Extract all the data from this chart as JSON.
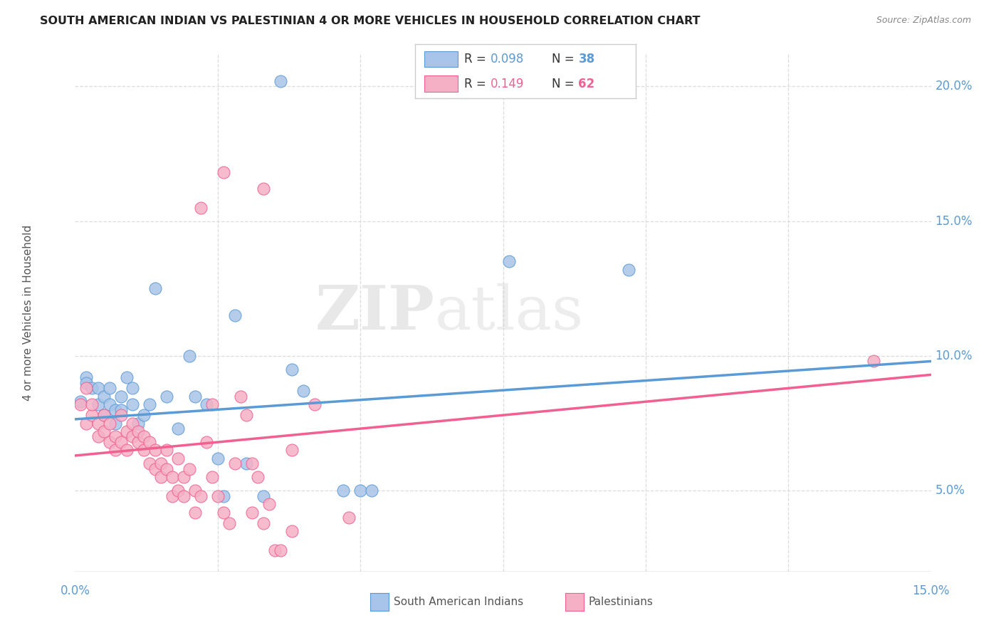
{
  "title": "SOUTH AMERICAN INDIAN VS PALESTINIAN 4 OR MORE VEHICLES IN HOUSEHOLD CORRELATION CHART",
  "source": "Source: ZipAtlas.com",
  "ylabel": "4 or more Vehicles in Household",
  "ytick_labels": [
    "5.0%",
    "10.0%",
    "15.0%",
    "20.0%"
  ],
  "ytick_values": [
    0.05,
    0.1,
    0.15,
    0.2
  ],
  "xmin": 0.0,
  "xmax": 0.15,
  "ymin": 0.02,
  "ymax": 0.212,
  "watermark_zip": "ZIP",
  "watermark_atlas": "atlas",
  "legend_blue_r": "R = ",
  "legend_blue_r_val": "0.098",
  "legend_blue_n_label": "N = ",
  "legend_blue_n_val": "38",
  "legend_pink_r": "R = ",
  "legend_pink_r_val": "0.149",
  "legend_pink_n_label": "N = ",
  "legend_pink_n_val": "62",
  "blue_color": "#a8c4e8",
  "pink_color": "#f5b0c5",
  "line_blue": "#5b9bd5",
  "line_pink": "#f06090",
  "grid_color": "#dddddd",
  "blue_scatter": [
    [
      0.001,
      0.083
    ],
    [
      0.002,
      0.092
    ],
    [
      0.002,
      0.09
    ],
    [
      0.003,
      0.088
    ],
    [
      0.004,
      0.082
    ],
    [
      0.004,
      0.088
    ],
    [
      0.005,
      0.085
    ],
    [
      0.005,
      0.078
    ],
    [
      0.006,
      0.082
    ],
    [
      0.006,
      0.088
    ],
    [
      0.007,
      0.08
    ],
    [
      0.007,
      0.075
    ],
    [
      0.008,
      0.085
    ],
    [
      0.008,
      0.08
    ],
    [
      0.009,
      0.092
    ],
    [
      0.01,
      0.082
    ],
    [
      0.01,
      0.088
    ],
    [
      0.011,
      0.075
    ],
    [
      0.012,
      0.078
    ],
    [
      0.013,
      0.082
    ],
    [
      0.014,
      0.125
    ],
    [
      0.016,
      0.085
    ],
    [
      0.018,
      0.073
    ],
    [
      0.02,
      0.1
    ],
    [
      0.021,
      0.085
    ],
    [
      0.023,
      0.082
    ],
    [
      0.025,
      0.062
    ],
    [
      0.026,
      0.048
    ],
    [
      0.028,
      0.115
    ],
    [
      0.03,
      0.06
    ],
    [
      0.033,
      0.048
    ],
    [
      0.038,
      0.095
    ],
    [
      0.04,
      0.087
    ],
    [
      0.047,
      0.05
    ],
    [
      0.05,
      0.05
    ],
    [
      0.052,
      0.05
    ],
    [
      0.076,
      0.135
    ],
    [
      0.097,
      0.132
    ],
    [
      0.036,
      0.202
    ]
  ],
  "pink_scatter": [
    [
      0.001,
      0.082
    ],
    [
      0.002,
      0.075
    ],
    [
      0.002,
      0.088
    ],
    [
      0.003,
      0.078
    ],
    [
      0.003,
      0.082
    ],
    [
      0.004,
      0.075
    ],
    [
      0.004,
      0.07
    ],
    [
      0.005,
      0.078
    ],
    [
      0.005,
      0.072
    ],
    [
      0.006,
      0.068
    ],
    [
      0.006,
      0.075
    ],
    [
      0.007,
      0.07
    ],
    [
      0.007,
      0.065
    ],
    [
      0.008,
      0.078
    ],
    [
      0.008,
      0.068
    ],
    [
      0.009,
      0.072
    ],
    [
      0.009,
      0.065
    ],
    [
      0.01,
      0.07
    ],
    [
      0.01,
      0.075
    ],
    [
      0.011,
      0.068
    ],
    [
      0.011,
      0.072
    ],
    [
      0.012,
      0.065
    ],
    [
      0.012,
      0.07
    ],
    [
      0.013,
      0.06
    ],
    [
      0.013,
      0.068
    ],
    [
      0.014,
      0.058
    ],
    [
      0.014,
      0.065
    ],
    [
      0.015,
      0.055
    ],
    [
      0.015,
      0.06
    ],
    [
      0.016,
      0.065
    ],
    [
      0.016,
      0.058
    ],
    [
      0.017,
      0.048
    ],
    [
      0.017,
      0.055
    ],
    [
      0.018,
      0.05
    ],
    [
      0.018,
      0.062
    ],
    [
      0.019,
      0.048
    ],
    [
      0.019,
      0.055
    ],
    [
      0.02,
      0.058
    ],
    [
      0.021,
      0.05
    ],
    [
      0.021,
      0.042
    ],
    [
      0.022,
      0.048
    ],
    [
      0.022,
      0.155
    ],
    [
      0.023,
      0.068
    ],
    [
      0.024,
      0.055
    ],
    [
      0.024,
      0.082
    ],
    [
      0.025,
      0.048
    ],
    [
      0.026,
      0.042
    ],
    [
      0.027,
      0.038
    ],
    [
      0.028,
      0.06
    ],
    [
      0.029,
      0.085
    ],
    [
      0.03,
      0.078
    ],
    [
      0.031,
      0.06
    ],
    [
      0.031,
      0.042
    ],
    [
      0.032,
      0.055
    ],
    [
      0.033,
      0.038
    ],
    [
      0.034,
      0.045
    ],
    [
      0.035,
      0.028
    ],
    [
      0.036,
      0.028
    ],
    [
      0.038,
      0.035
    ],
    [
      0.038,
      0.065
    ],
    [
      0.042,
      0.082
    ],
    [
      0.048,
      0.04
    ],
    [
      0.026,
      0.168
    ],
    [
      0.033,
      0.162
    ],
    [
      0.14,
      0.098
    ]
  ],
  "blue_line_x": [
    0.0,
    0.15
  ],
  "blue_line_y": [
    0.0765,
    0.098
  ],
  "pink_line_x": [
    0.0,
    0.15
  ],
  "pink_line_y": [
    0.063,
    0.093
  ]
}
